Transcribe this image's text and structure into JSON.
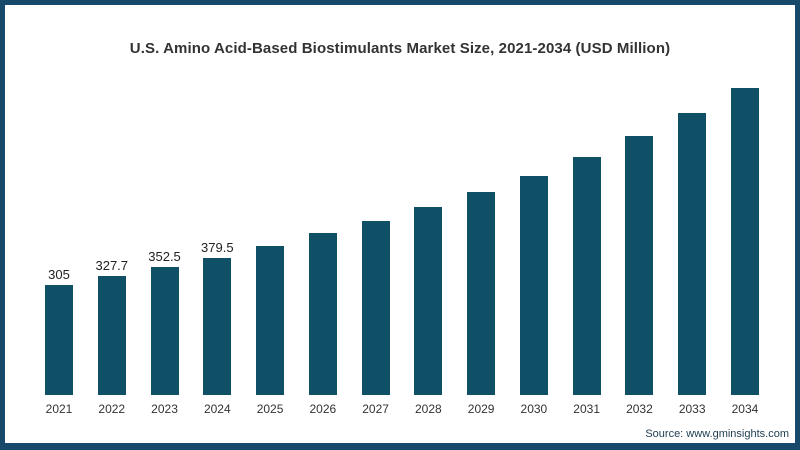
{
  "title": "U.S. Amino Acid-Based Biostimulants Market Size, 2021-2034 (USD Million)",
  "source": "Source: www.gminsights.com",
  "colors": {
    "bar": "#105066",
    "frame_border": "#17496b",
    "background": "#ffffff",
    "title_text": "#333333",
    "axis_text": "#333333"
  },
  "chart_data": {
    "type": "bar",
    "title": "U.S. Amino Acid-Based Biostimulants Market Size, 2021-2034 (USD Million)",
    "categories": [
      "2021",
      "2022",
      "2023",
      "2024",
      "2025",
      "2026",
      "2027",
      "2028",
      "2029",
      "2030",
      "2031",
      "2032",
      "2033",
      "2034"
    ],
    "values": [
      305,
      327.7,
      352.5,
      379.5,
      412,
      448,
      481,
      520,
      561,
      605,
      658,
      716,
      778,
      847
    ],
    "data_labels": [
      "305",
      "327.7",
      "352.5",
      "379.5",
      "",
      "",
      "",
      "",
      "",
      "",
      "",
      "",
      "",
      ""
    ],
    "xlabel": "",
    "ylabel": "",
    "ylim": [
      0,
      900
    ],
    "grid": false,
    "legend": false,
    "bar_color": "#105066"
  }
}
